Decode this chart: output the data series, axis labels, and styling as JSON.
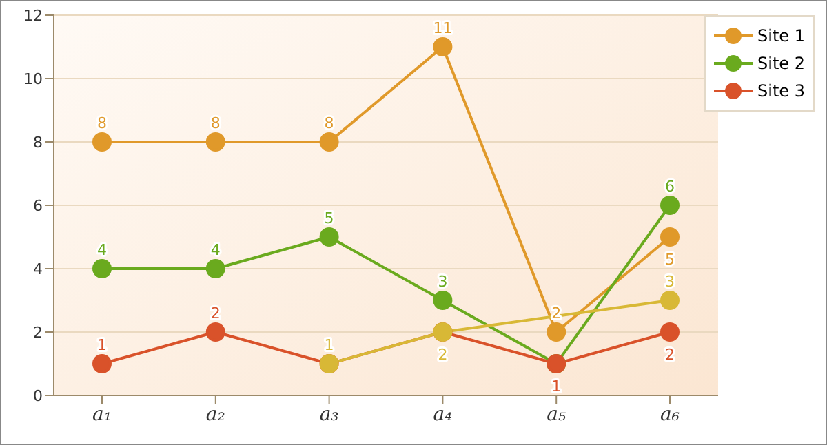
{
  "chart_data": {
    "type": "line",
    "categories": [
      "a₁",
      "a₂",
      "a₃",
      "a₄",
      "a₅",
      "a₆"
    ],
    "series": [
      {
        "name": "Site 1",
        "color": "#e0992a",
        "values": [
          8,
          8,
          8,
          11,
          2,
          5
        ],
        "value_labels": [
          "8",
          "8",
          "8",
          "11",
          "2",
          "5"
        ]
      },
      {
        "name": "Site 2",
        "color": "#6aaa1e",
        "values": [
          4,
          4,
          5,
          3,
          1,
          6
        ],
        "value_labels": [
          "4",
          "4",
          "5",
          "3",
          null,
          "6"
        ]
      },
      {
        "name": "Site 3",
        "color": "#d9522a",
        "values": [
          1,
          2,
          1,
          2,
          1,
          2
        ],
        "value_labels": [
          "1",
          "2",
          null,
          null,
          "1",
          "2"
        ]
      },
      {
        "color": "#d8b836",
        "values": [
          null,
          null,
          1,
          2,
          null,
          3
        ],
        "value_labels": [
          null,
          null,
          "1",
          "2",
          null,
          "3"
        ]
      }
    ],
    "ylim": [
      0,
      12
    ],
    "yticks": [
      0,
      2,
      4,
      6,
      8,
      10,
      12
    ],
    "grid": "y",
    "legend": "top right",
    "marker": "circle",
    "line_style": "solid"
  }
}
